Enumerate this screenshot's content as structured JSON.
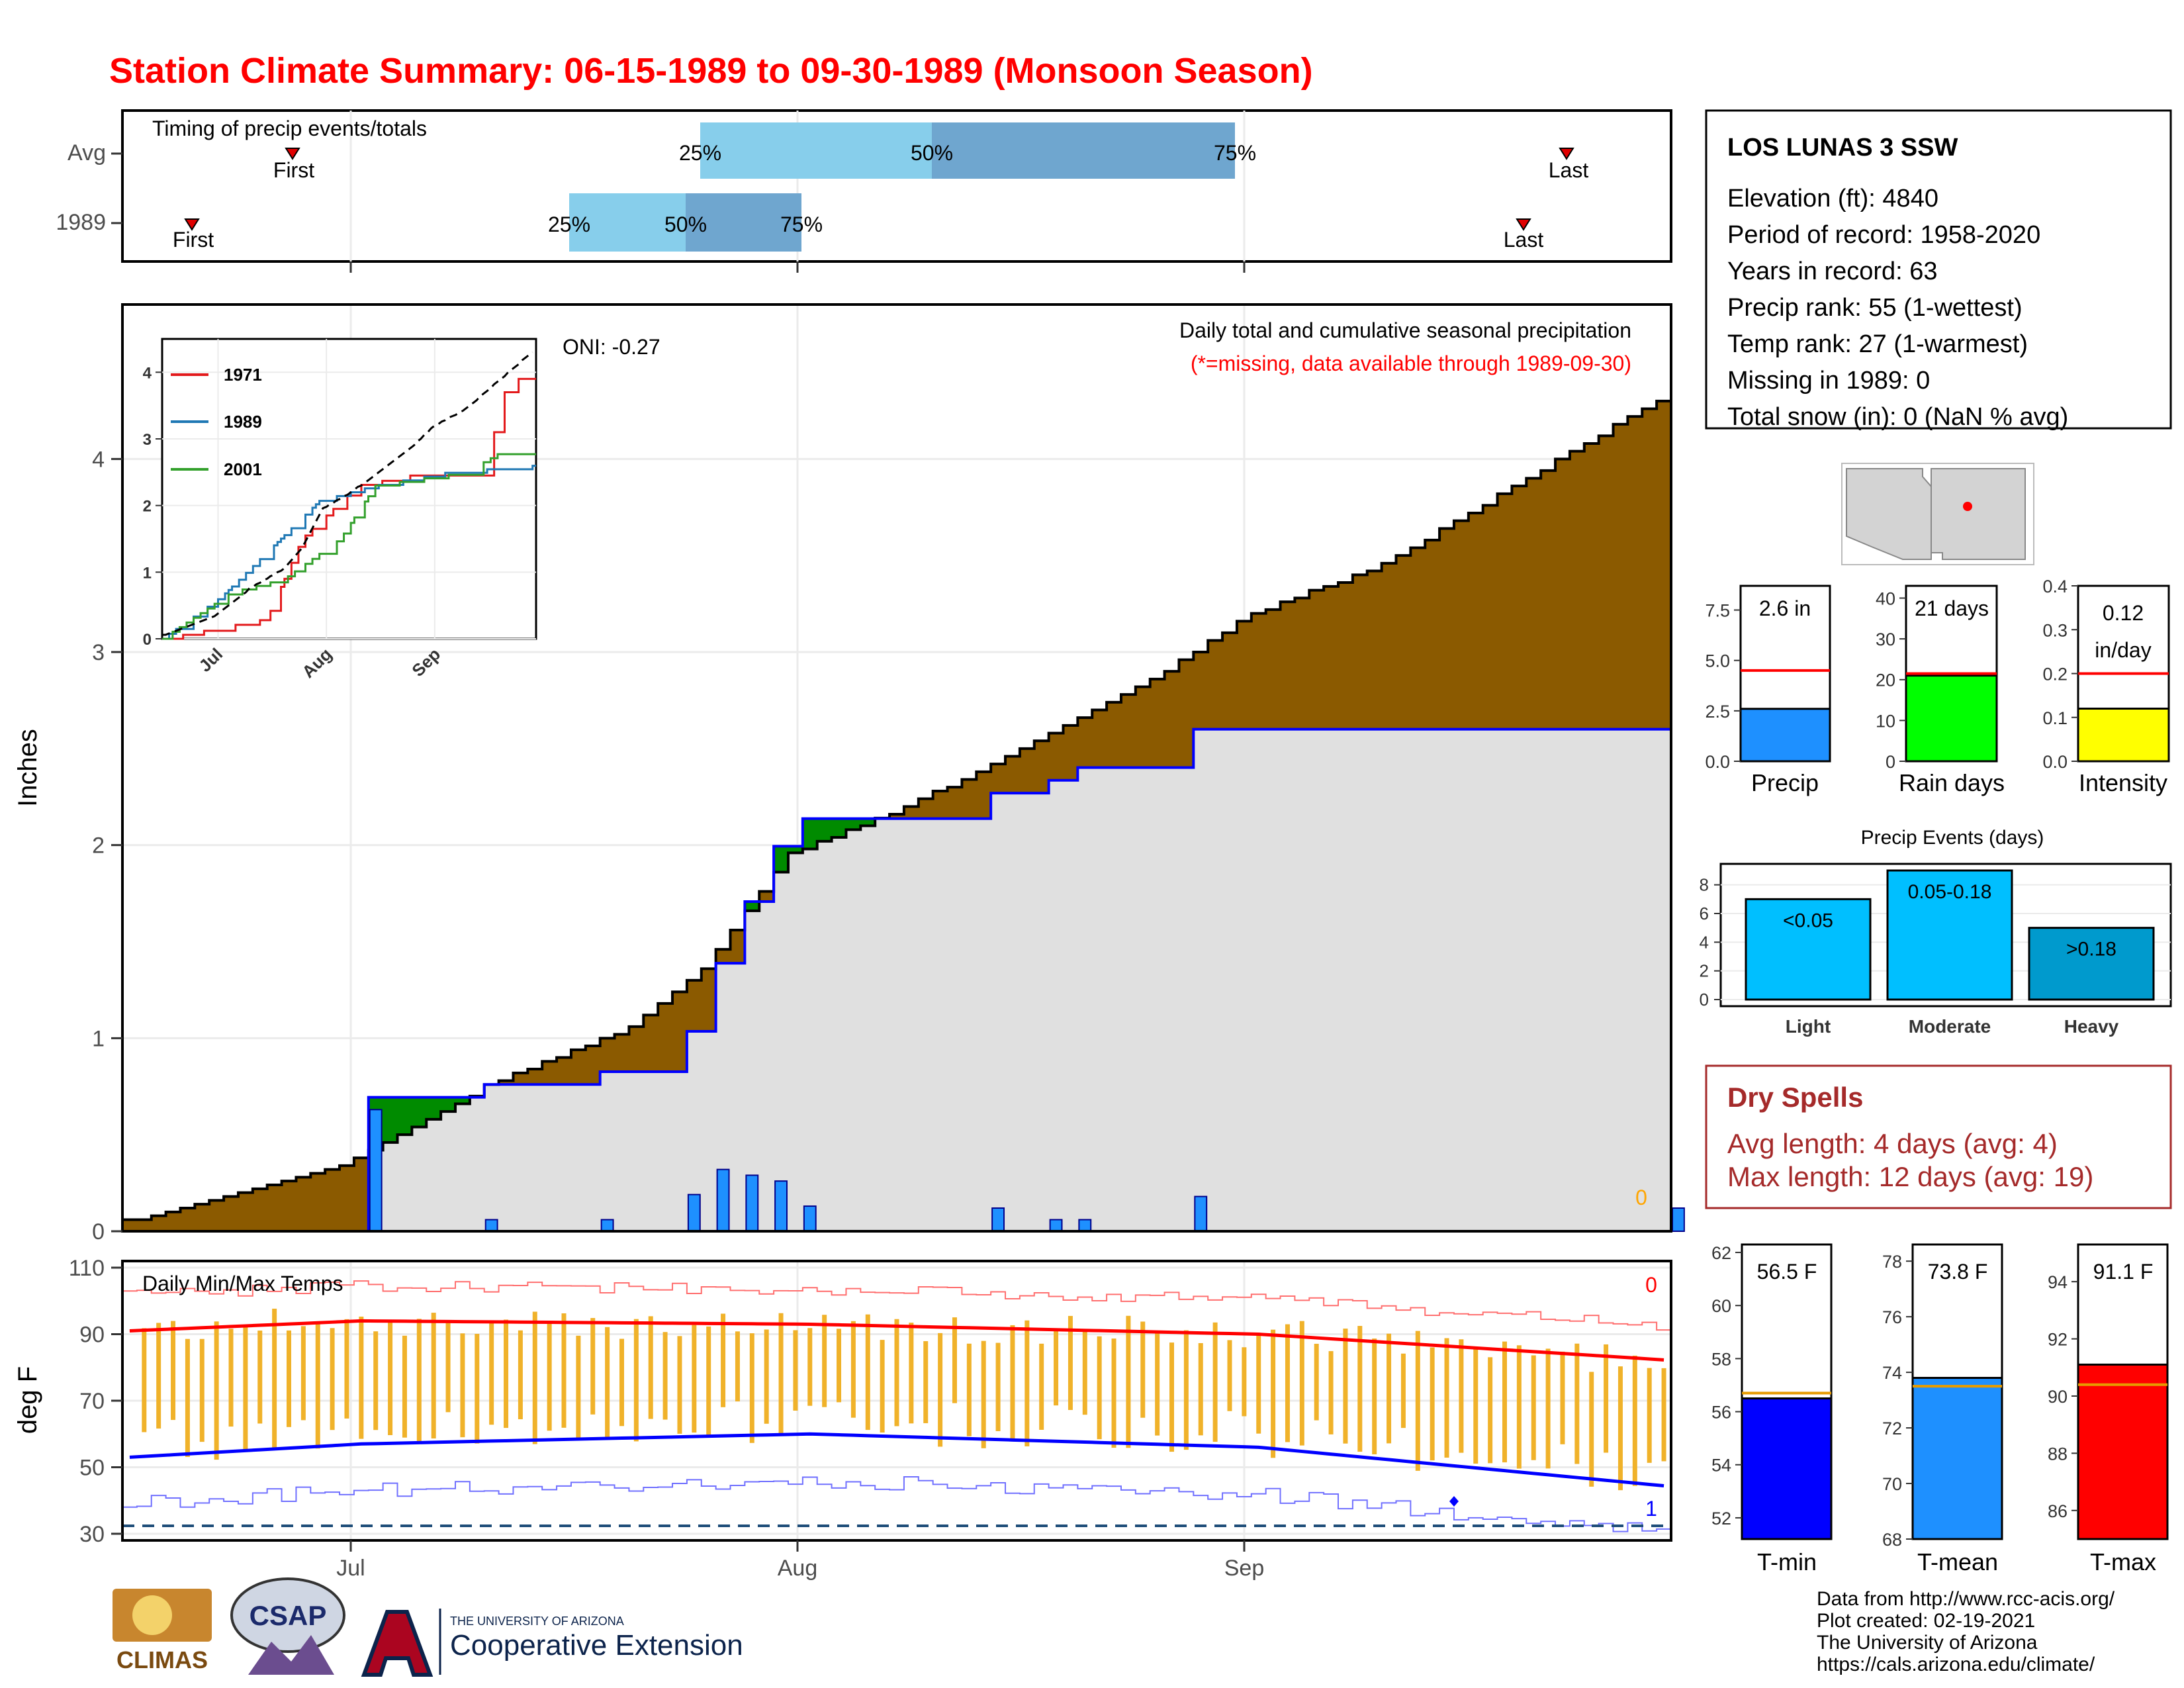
{
  "title": "Station Climate Summary: 06-15-1989 to 09-30-1989 (Monsoon Season)",
  "colors": {
    "title": "#ff0000",
    "precip_fill": "#8b5a00",
    "deficit_green": "#008b00",
    "cum_line": "#0000ff",
    "bar_fill": "#1e90ff",
    "temp_bar": "#f0b22a",
    "avg_max": "#ff0000",
    "avg_min": "#0000ff",
    "timing_light": "#87ceeb",
    "timing_dark": "#6fa6cf",
    "dry_spell": "#a52a2a"
  },
  "timing_panel": {
    "label": "Timing of precip events/totals",
    "rows": [
      {
        "name": "Avg",
        "first": "First",
        "last": "Last",
        "p25": "25%",
        "p50": "50%",
        "p75": "75%"
      },
      {
        "name": "1989",
        "first": "First",
        "last": "Last",
        "p25": "25%",
        "p50": "50%",
        "p75": "75%"
      }
    ]
  },
  "precip_panel": {
    "ylabel": "Inches",
    "annotation": "Daily total and cumulative seasonal precipitation",
    "missing_note": "(*=missing, data available through 1989-09-30)",
    "oni": "ONI: -0.27",
    "zero_label": "0",
    "yticks": [
      "0",
      "1",
      "2",
      "3",
      "4"
    ],
    "inset": {
      "legend": [
        "1971",
        "1989",
        "2001"
      ],
      "yticks": [
        "0",
        "1",
        "2",
        "3",
        "4"
      ],
      "xticks": [
        "Jul",
        "Aug",
        "Sep"
      ]
    }
  },
  "temp_panel": {
    "ylabel": "deg F",
    "label": "Daily Min/Max Temps",
    "max_count": "0",
    "min_count": "1",
    "yticks": [
      "30",
      "50",
      "70",
      "90",
      "110"
    ],
    "xticks": [
      "Jul",
      "Aug",
      "Sep"
    ]
  },
  "station": {
    "name": "LOS LUNAS 3 SSW",
    "lines": [
      "Elevation (ft): 4840",
      "Period of record: 1958-2020",
      "Years in record: 63",
      "Precip rank: 55 (1-wettest)",
      "Temp rank: 27 (1-warmest)",
      "Missing in 1989: 0",
      "Total snow (in): 0 (NaN % avg)"
    ]
  },
  "mini_bars": [
    {
      "label": "Precip",
      "value_label": "2.6 in",
      "yticks": [
        "0.0",
        "2.5",
        "5.0",
        "7.5"
      ],
      "color": "#1e90ff"
    },
    {
      "label": "Rain days",
      "value_label": "21 days",
      "yticks": [
        "0",
        "10",
        "20",
        "30",
        "40"
      ],
      "color": "#00ff00"
    },
    {
      "label": "Intensity",
      "value_label": "0.12 in/day",
      "value_line1": "0.12",
      "value_line2": "in/day",
      "yticks": [
        "0.0",
        "0.1",
        "0.2",
        "0.3",
        "0.4"
      ],
      "color": "#ffff00"
    }
  ],
  "events": {
    "title": "Precip Events (days)",
    "yticks": [
      "0",
      "2",
      "4",
      "6",
      "8"
    ],
    "categories": [
      "Light",
      "Moderate",
      "Heavy"
    ],
    "bar_labels": [
      "<0.05",
      "0.05-0.18",
      ">0.18"
    ]
  },
  "dry_spells": {
    "title": "Dry Spells",
    "avg": "Avg length: 4 days (avg: 4)",
    "max": "Max length: 12 days (avg: 19)"
  },
  "temp_bars": [
    {
      "label": "T-min",
      "value_label": "56.5 F",
      "yticks": [
        "52",
        "54",
        "56",
        "58",
        "60",
        "62"
      ],
      "color": "#0000ff"
    },
    {
      "label": "T-mean",
      "value_label": "73.8 F",
      "yticks": [
        "68",
        "70",
        "72",
        "74",
        "76",
        "78"
      ],
      "color": "#1e90ff"
    },
    {
      "label": "T-max",
      "value_label": "91.1 F",
      "yticks": [
        "86",
        "88",
        "90",
        "92",
        "94"
      ],
      "color": "#ff0000"
    }
  ],
  "footer": {
    "lines": [
      "Data from http://www.rcc-acis.org/",
      "Plot created: 02-19-2021",
      "The University of Arizona",
      "https://cals.arizona.edu/climate/"
    ],
    "climas": "CLIMAS",
    "csap": "CSAP",
    "ua_small": "THE UNIVERSITY OF ARIZONA",
    "ua_big": "Cooperative Extension"
  },
  "chart_data": [
    {
      "type": "area",
      "title": "Daily total and cumulative seasonal precipitation",
      "ylabel": "Inches",
      "xlim": [
        "1989-06-15",
        "1989-09-30"
      ],
      "ylim": [
        0,
        4.8
      ],
      "series": [
        {
          "name": "Avg cumulative",
          "x": [
            "06-15",
            "06-30",
            "07-10",
            "07-20",
            "07-25",
            "07-31",
            "08-08",
            "08-15",
            "08-25",
            "09-01",
            "09-10",
            "09-20",
            "09-30"
          ],
          "y": [
            0.05,
            0.33,
            0.75,
            1.05,
            1.35,
            1.95,
            2.2,
            2.45,
            2.85,
            3.2,
            3.45,
            3.9,
            4.35
          ]
        },
        {
          "name": "1989",
          "x": [
            "06-15",
            "07-02",
            "07-18",
            "07-21",
            "07-23",
            "07-25",
            "07-30",
            "08-15",
            "08-28",
            "09-05",
            "09-25",
            "09-30"
          ],
          "y": [
            0.0,
            0.63,
            0.63,
            0.75,
            1.35,
            1.82,
            2.07,
            2.22,
            2.45,
            2.48,
            2.6,
            2.6
          ]
        }
      ],
      "daily_bars": {
        "x": [
          "07-02",
          "07-10",
          "07-18",
          "07-24",
          "07-26",
          "07-28",
          "07-30",
          "08-01",
          "08-14",
          "08-18",
          "08-20",
          "08-28",
          "09-30"
        ],
        "y": [
          0.63,
          0.06,
          0.06,
          0.19,
          0.32,
          0.29,
          0.26,
          0.13,
          0.12,
          0.06,
          0.06,
          0.18,
          0.12
        ]
      }
    },
    {
      "type": "line",
      "title": "Daily Min/Max Temps",
      "ylabel": "deg F",
      "ylim": [
        28,
        112
      ],
      "series": [
        {
          "name": "Avg max",
          "x": [
            "06-15",
            "07-01",
            "08-01",
            "09-01",
            "09-30"
          ],
          "y": [
            91,
            94,
            93,
            90,
            82
          ]
        },
        {
          "name": "Avg min",
          "x": [
            "06-15",
            "07-01",
            "08-01",
            "09-01",
            "09-30"
          ],
          "y": [
            53,
            57,
            60,
            56,
            44
          ]
        }
      ]
    },
    {
      "type": "bar",
      "title": "Precip Events (days)",
      "categories": [
        "Light",
        "Moderate",
        "Heavy"
      ],
      "values": [
        7,
        9,
        5
      ],
      "ylim": [
        0,
        9
      ]
    },
    {
      "type": "bar",
      "categories": [
        "Precip",
        "Rain days",
        "Intensity"
      ],
      "values": [
        2.6,
        21,
        0.12
      ],
      "avg": [
        4.5,
        21.5,
        0.2
      ]
    },
    {
      "type": "bar",
      "categories": [
        "T-min",
        "T-mean",
        "T-max"
      ],
      "values": [
        56.5,
        73.8,
        91.1
      ],
      "avg": [
        56.7,
        73.5,
        90.4
      ]
    }
  ]
}
